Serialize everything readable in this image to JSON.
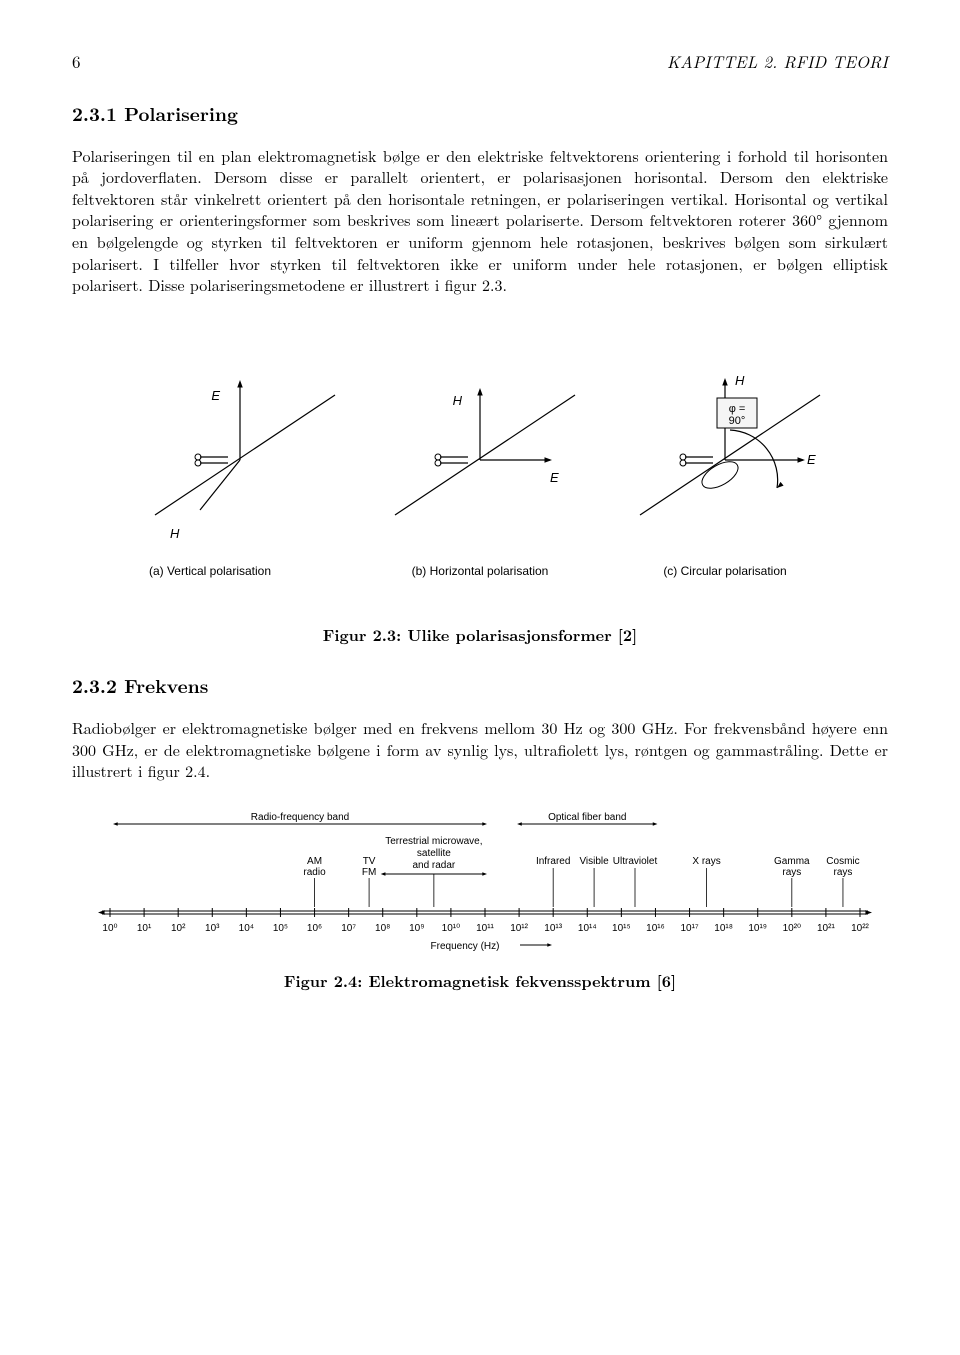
{
  "header": {
    "page_number": "6",
    "running_title": "KAPITTEL 2. RFID TEORI"
  },
  "section_231": {
    "heading": "2.3.1   Polarisering",
    "paragraph": "Polariseringen til en plan elektromagnetisk bølge er den elektriske feltvektorens orientering i forhold til horisonten på jordoverflaten. Dersom disse er parallelt orientert, er polarisasjonen horisontal. Dersom den elektriske feltvektoren står vinkelrett orientert på den horisontale retningen, er polariseringen vertikal. Horisontal og vertikal polarisering er orienteringsformer som beskrives som lineært polariserte. Dersom feltvektoren roterer 360° gjennom en bølgelengde og styrken til feltvektoren er uniform gjennom hele rotasjonen, beskrives bølgen som sirkulært polarisert. I tilfeller hvor styrken til feltvektoren ikke er uniform under hele rotasjonen, er bølgen elliptisk polarisert. Disse polariseringsmetodene er illustrert i figur 2.3."
  },
  "figure_23": {
    "type": "diagram",
    "background": "#ffffff",
    "stroke": "#000000",
    "stroke_width": 1.2,
    "fontsize_label": 13,
    "fontsize_caption": 12,
    "box_fill": "#f5f5f5",
    "panels": [
      {
        "id": "a",
        "label_E": "E",
        "label_H": "H",
        "caption": "(a) Vertical polarisation"
      },
      {
        "id": "b",
        "label_E": "E",
        "label_H": "H",
        "caption": "(b) Horizontal polarisation"
      },
      {
        "id": "c",
        "label_E": "E",
        "label_H": "H",
        "phi": "φ =",
        "phi2": "90°",
        "caption": "(c) Circular polarisation"
      }
    ],
    "caption": "Figur 2.3: Ulike polarisasjonsformer [2]"
  },
  "section_232": {
    "heading": "2.3.2   Frekvens",
    "paragraph": "Radiobølger er elektromagnetiske bølger med en frekvens mellom 30 Hz og 300 GHz. For frekvensbånd høyere enn 300 GHz, er de elektromagnetiske bølgene i form av synlig lys, ultrafiolett lys, røntgen og gammastråling. Dette er illustrert i figur 2.4."
  },
  "figure_24": {
    "type": "spectrum",
    "background": "#ffffff",
    "stroke": "#000000",
    "fontsize_tick": 10,
    "fontsize_label": 10,
    "fontsize_band": 10,
    "xlabel": "Frequency (Hz)",
    "ticks": [
      "10⁰",
      "10¹",
      "10²",
      "10³",
      "10⁴",
      "10⁵",
      "10⁶",
      "10⁷",
      "10⁸",
      "10⁹",
      "10¹⁰",
      "10¹¹",
      "10¹²",
      "10¹³",
      "10¹⁴",
      "10¹⁵",
      "10¹⁶",
      "10¹⁷",
      "10¹⁸",
      "10¹⁹",
      "10²⁰",
      "10²¹",
      "10²²"
    ],
    "upper_left": {
      "text": "Radio-frequency band",
      "from": 0,
      "to": 11
    },
    "upper_right": {
      "text": "Optical fiber band",
      "from": 12,
      "to": 16
    },
    "row2": [
      {
        "text1": "AM",
        "text2": "radio",
        "at": 6
      },
      {
        "text1": "TV",
        "text2": "FM",
        "at": 7.6
      },
      {
        "text1": "Terrestrial microwave,",
        "text2": "satellite",
        "text3": "and radar",
        "from": 8,
        "to": 11
      },
      {
        "text1": "Infrared",
        "at": 13
      },
      {
        "text1": "Visible",
        "at": 14.2
      },
      {
        "text1": "Ultraviolet",
        "at": 15.4
      },
      {
        "text1": "X rays",
        "at": 17.5
      },
      {
        "text1": "Gamma",
        "text2": "rays",
        "at": 20
      },
      {
        "text1": "Cosmic",
        "text2": "rays",
        "at": 21.5
      }
    ],
    "caption": "Figur 2.4: Elektromagnetisk fekvensspektrum [6]"
  }
}
